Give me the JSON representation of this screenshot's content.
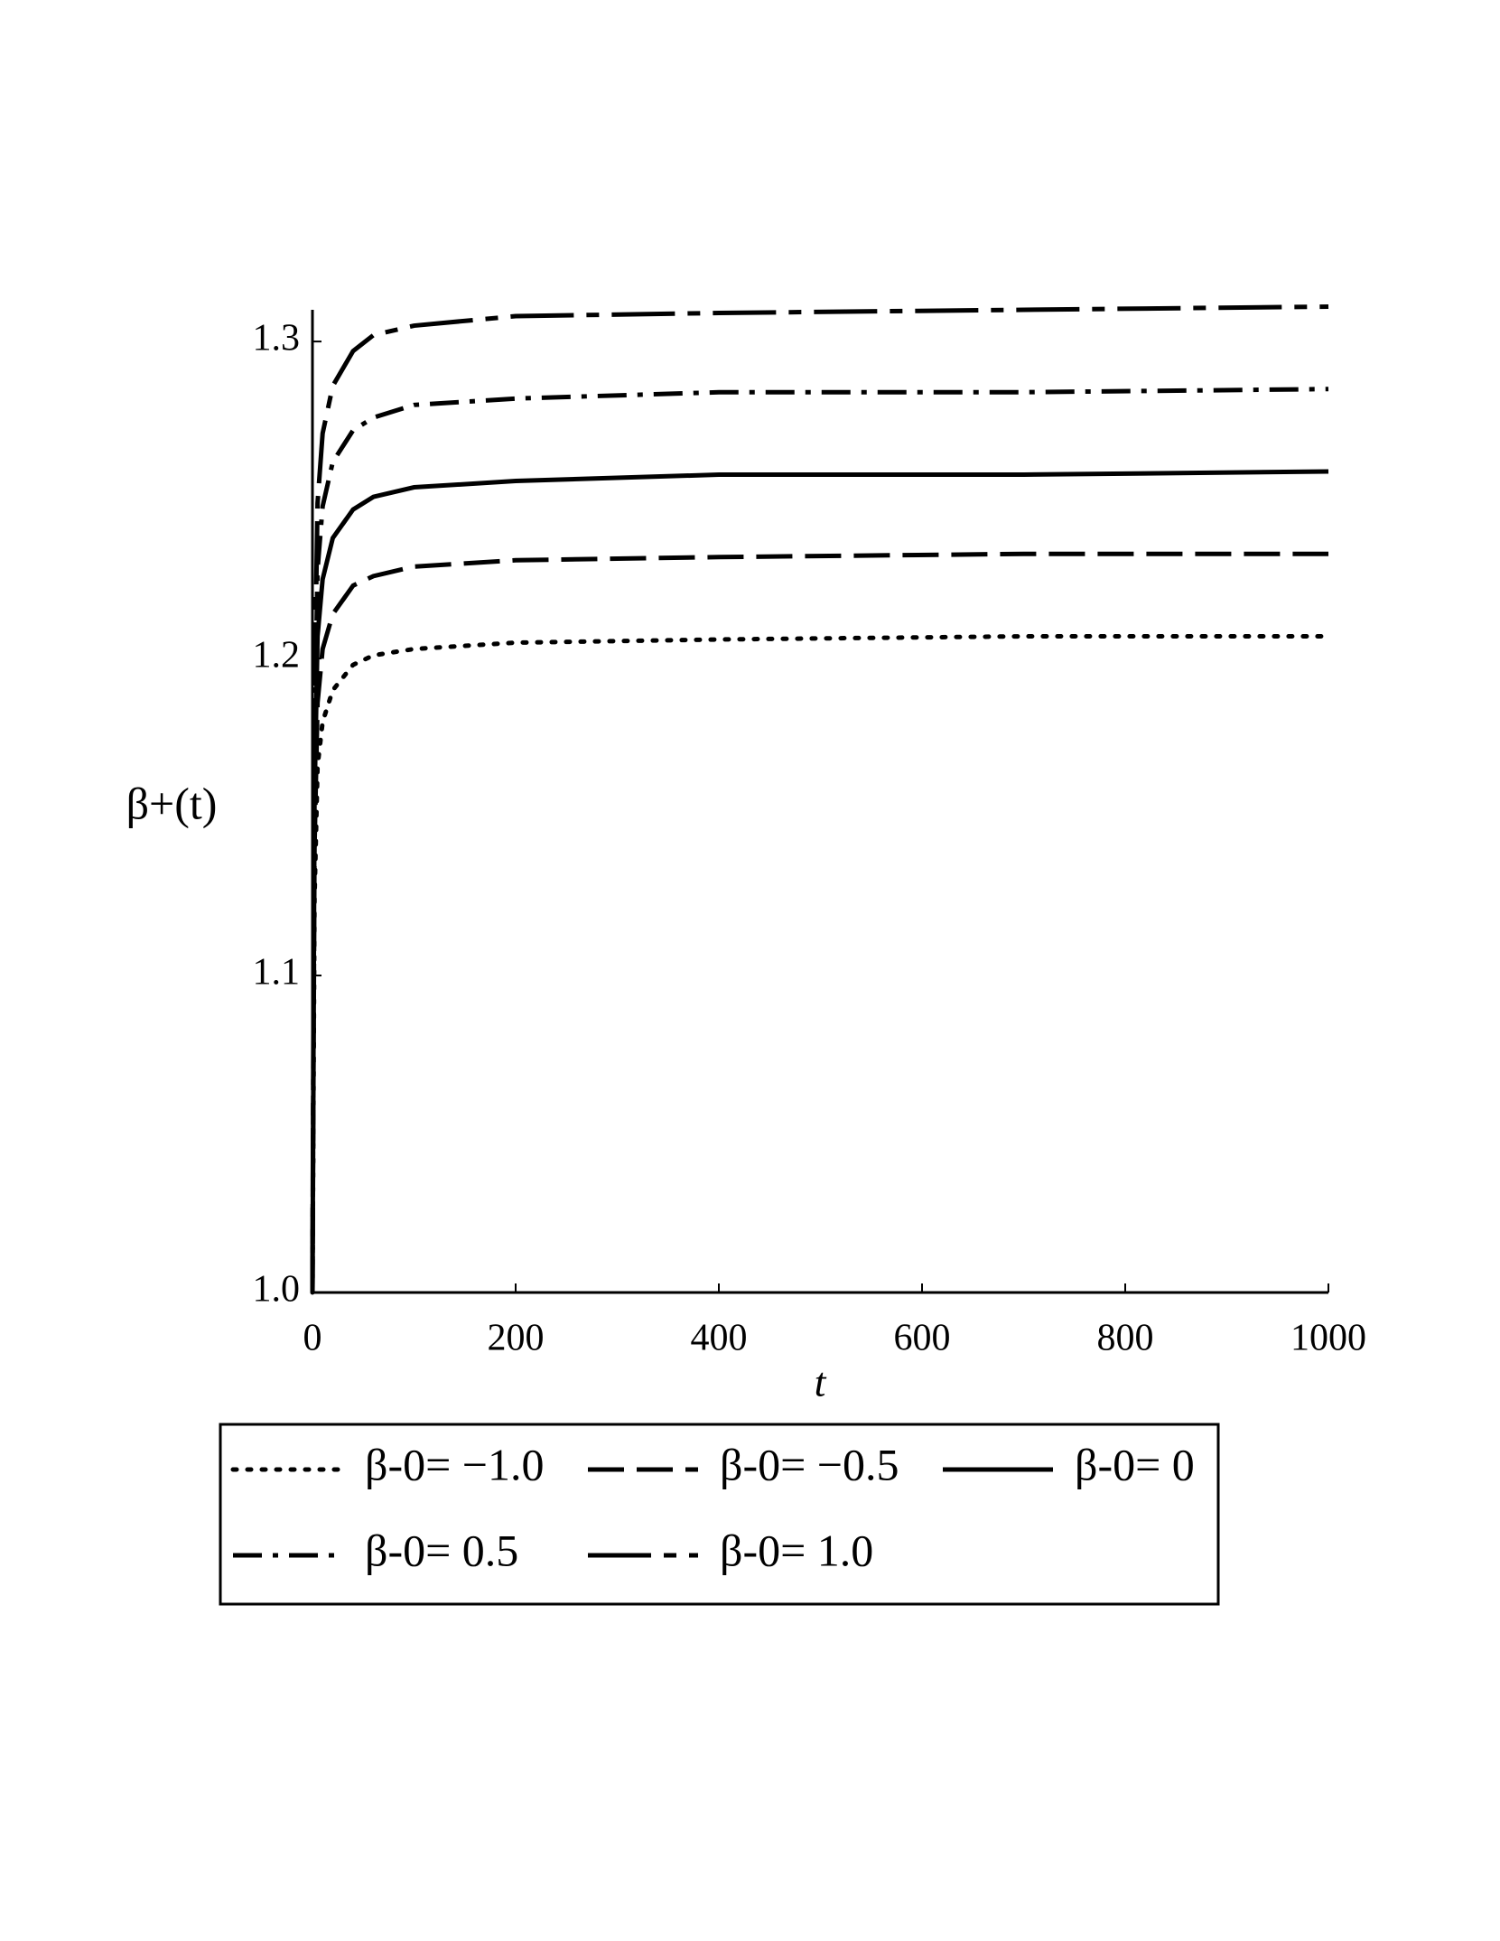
{
  "chart_data": {
    "type": "line",
    "xlabel": "t",
    "ylabel": "β+(t)",
    "x": [
      0,
      2,
      5,
      10,
      20,
      40,
      60,
      100,
      200,
      400,
      700,
      1000
    ],
    "series": [
      {
        "name": "β-0= −1.0",
        "color": "#000000",
        "dash": "4,12",
        "values": [
          1,
          1.124,
          1.166,
          1.18,
          1.19,
          1.198,
          1.201,
          1.203,
          1.205,
          1.206,
          1.207,
          1.207
        ]
      },
      {
        "name": "β-0= −0.5",
        "color": "#000000",
        "dash": "40,14",
        "values": [
          1,
          1.14,
          1.186,
          1.203,
          1.214,
          1.223,
          1.226,
          1.229,
          1.231,
          1.232,
          1.233,
          1.233
        ]
      },
      {
        "name": "β-0= 0",
        "color": "#000000",
        "dash": "none",
        "values": [
          1,
          1.155,
          1.207,
          1.225,
          1.238,
          1.247,
          1.251,
          1.254,
          1.256,
          1.258,
          1.258,
          1.259
        ]
      },
      {
        "name": "β-0= 0.5",
        "color": "#000000",
        "dash": "32,12,6,12",
        "values": [
          1,
          1.171,
          1.228,
          1.248,
          1.262,
          1.272,
          1.276,
          1.28,
          1.282,
          1.284,
          1.284,
          1.285
        ]
      },
      {
        "name": "β-0= 1.0",
        "color": "#000000",
        "dash": "70,14,14,14",
        "values": [
          1,
          1.187,
          1.249,
          1.271,
          1.286,
          1.297,
          1.302,
          1.305,
          1.308,
          1.309,
          1.31,
          1.311
        ]
      }
    ],
    "xlim": [
      0,
      1000
    ],
    "ylim": [
      1,
      1.31
    ],
    "xticks": [
      0,
      200,
      400,
      600,
      800,
      1000
    ],
    "yticks": [
      {
        "value": 1,
        "label": "1.0"
      },
      1.1,
      1.2,
      1.3
    ]
  }
}
